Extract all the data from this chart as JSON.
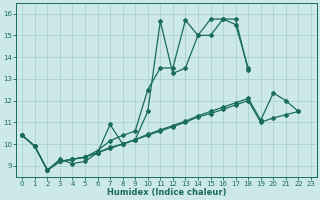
{
  "xlabel": "Humidex (Indice chaleur)",
  "xlim": [
    -0.5,
    23.5
  ],
  "ylim": [
    8.5,
    16.5
  ],
  "yticks": [
    9,
    10,
    11,
    12,
    13,
    14,
    15,
    16
  ],
  "xticks": [
    0,
    1,
    2,
    3,
    4,
    5,
    6,
    7,
    8,
    9,
    10,
    11,
    12,
    13,
    14,
    15,
    16,
    17,
    18,
    19,
    20,
    21,
    22,
    23
  ],
  "background_color": "#cce8e8",
  "line_color": "#1a6b60",
  "grid_color": "#a8cccc",
  "line1_x": [
    0,
    1,
    2,
    3,
    4,
    5,
    6,
    7,
    8,
    9,
    10,
    11,
    12,
    13,
    14,
    15,
    16,
    17,
    18
  ],
  "line1_y": [
    10.4,
    9.9,
    8.8,
    9.3,
    9.1,
    9.2,
    9.6,
    10.9,
    10.0,
    10.2,
    11.5,
    15.65,
    13.25,
    13.5,
    15.0,
    15.75,
    15.75,
    15.5,
    13.5
  ],
  "line2_x": [
    0,
    1,
    2,
    3,
    4,
    5,
    6,
    7,
    8,
    9,
    10,
    11,
    12,
    13,
    14,
    15,
    16,
    17,
    18
  ],
  "line2_y": [
    10.4,
    9.9,
    8.8,
    9.2,
    9.3,
    9.4,
    9.7,
    10.15,
    10.4,
    10.6,
    12.5,
    13.5,
    13.5,
    15.7,
    15.0,
    15.0,
    15.75,
    15.75,
    13.4
  ],
  "line3_x": [
    0,
    1,
    2,
    3,
    4,
    5,
    6,
    7,
    8,
    9,
    10,
    11,
    12,
    13,
    14,
    15,
    16,
    17,
    18,
    19,
    20,
    21,
    22
  ],
  "line3_y": [
    10.4,
    9.9,
    8.8,
    9.2,
    9.3,
    9.4,
    9.6,
    9.85,
    10.0,
    10.2,
    10.45,
    10.65,
    10.85,
    11.05,
    11.3,
    11.5,
    11.7,
    11.9,
    12.1,
    11.1,
    12.35,
    12.0,
    11.5
  ],
  "line4_x": [
    0,
    1,
    2,
    3,
    4,
    5,
    6,
    7,
    8,
    9,
    10,
    11,
    12,
    13,
    14,
    15,
    16,
    17,
    18,
    19,
    20,
    21,
    22
  ],
  "line4_y": [
    10.4,
    9.9,
    8.8,
    9.2,
    9.3,
    9.4,
    9.6,
    9.8,
    10.0,
    10.2,
    10.4,
    10.6,
    10.8,
    11.0,
    11.25,
    11.4,
    11.6,
    11.8,
    12.0,
    11.0,
    11.2,
    11.35,
    11.5
  ]
}
